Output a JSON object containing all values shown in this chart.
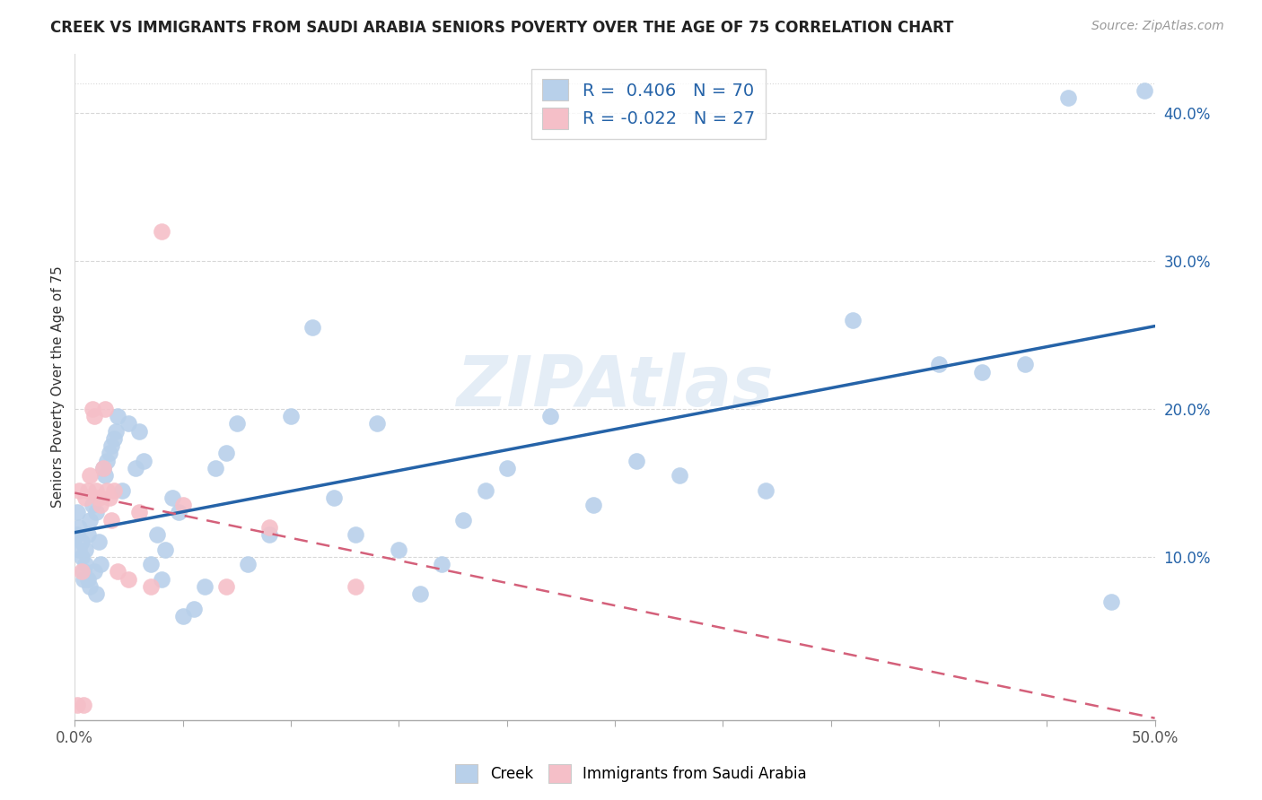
{
  "title": "CREEK VS IMMIGRANTS FROM SAUDI ARABIA SENIORS POVERTY OVER THE AGE OF 75 CORRELATION CHART",
  "source": "Source: ZipAtlas.com",
  "ylabel": "Seniors Poverty Over the Age of 75",
  "xlim": [
    0.0,
    0.5
  ],
  "ylim": [
    -0.01,
    0.44
  ],
  "xticks": [
    0.0,
    0.05,
    0.1,
    0.15,
    0.2,
    0.25,
    0.3,
    0.35,
    0.4,
    0.45,
    0.5
  ],
  "yticks_right": [
    0.1,
    0.2,
    0.3,
    0.4
  ],
  "ytick_labels_right": [
    "10.0%",
    "20.0%",
    "30.0%",
    "40.0%"
  ],
  "creek_color": "#b8d0ea",
  "creek_line_color": "#2563a8",
  "saudi_color": "#f5bfc8",
  "saudi_line_color": "#d4607a",
  "creek_R": 0.406,
  "creek_N": 70,
  "saudi_R": -0.022,
  "saudi_N": 27,
  "watermark": "ZIPAtlas",
  "background_color": "#ffffff",
  "grid_color": "#d8d8d8",
  "creek_x": [
    0.001,
    0.001,
    0.002,
    0.002,
    0.003,
    0.003,
    0.004,
    0.004,
    0.005,
    0.005,
    0.006,
    0.006,
    0.007,
    0.007,
    0.008,
    0.009,
    0.01,
    0.01,
    0.011,
    0.012,
    0.013,
    0.014,
    0.015,
    0.016,
    0.017,
    0.018,
    0.019,
    0.02,
    0.022,
    0.025,
    0.028,
    0.03,
    0.032,
    0.035,
    0.038,
    0.04,
    0.042,
    0.045,
    0.048,
    0.05,
    0.055,
    0.06,
    0.065,
    0.07,
    0.075,
    0.08,
    0.09,
    0.1,
    0.11,
    0.12,
    0.13,
    0.14,
    0.15,
    0.16,
    0.17,
    0.18,
    0.19,
    0.2,
    0.22,
    0.24,
    0.26,
    0.28,
    0.32,
    0.36,
    0.4,
    0.42,
    0.44,
    0.46,
    0.48,
    0.495
  ],
  "creek_y": [
    0.13,
    0.115,
    0.12,
    0.105,
    0.11,
    0.1,
    0.09,
    0.085,
    0.105,
    0.095,
    0.115,
    0.085,
    0.125,
    0.08,
    0.135,
    0.09,
    0.13,
    0.075,
    0.11,
    0.095,
    0.16,
    0.155,
    0.165,
    0.17,
    0.175,
    0.18,
    0.185,
    0.195,
    0.145,
    0.19,
    0.16,
    0.185,
    0.165,
    0.095,
    0.115,
    0.085,
    0.105,
    0.14,
    0.13,
    0.06,
    0.065,
    0.08,
    0.16,
    0.17,
    0.19,
    0.095,
    0.115,
    0.195,
    0.255,
    0.14,
    0.115,
    0.19,
    0.105,
    0.075,
    0.095,
    0.125,
    0.145,
    0.16,
    0.195,
    0.135,
    0.165,
    0.155,
    0.145,
    0.26,
    0.23,
    0.225,
    0.23,
    0.41,
    0.07,
    0.415
  ],
  "saudi_x": [
    0.001,
    0.002,
    0.003,
    0.005,
    0.006,
    0.007,
    0.008,
    0.009,
    0.01,
    0.011,
    0.012,
    0.013,
    0.014,
    0.015,
    0.016,
    0.017,
    0.018,
    0.02,
    0.025,
    0.03,
    0.035,
    0.04,
    0.05,
    0.07,
    0.09,
    0.13,
    0.0
  ],
  "saudi_y": [
    0.0,
    0.145,
    0.09,
    0.14,
    0.145,
    0.155,
    0.2,
    0.195,
    0.145,
    0.14,
    0.135,
    0.16,
    0.2,
    0.145,
    0.14,
    0.125,
    0.145,
    0.09,
    0.085,
    0.13,
    0.08,
    0.32,
    0.135,
    0.08,
    0.12,
    0.08,
    0.0
  ]
}
